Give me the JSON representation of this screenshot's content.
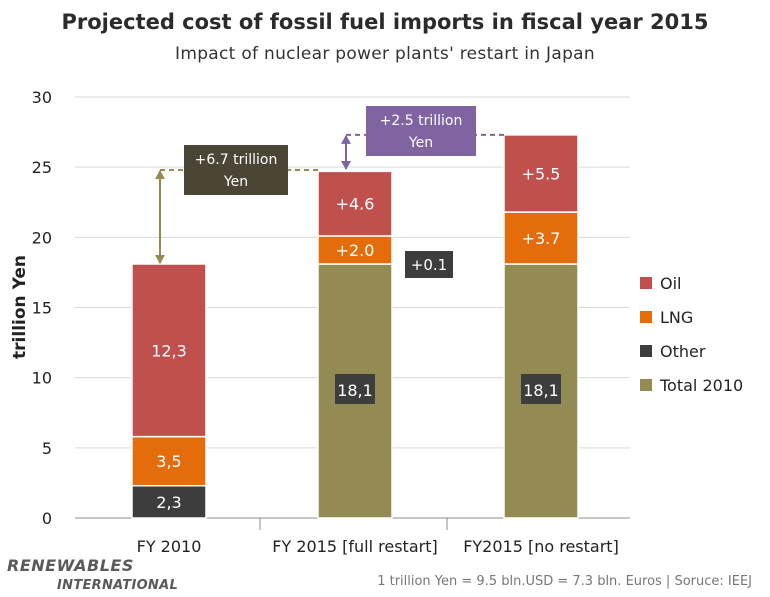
{
  "title": "Projected cost of fossil fuel imports in fiscal year 2015",
  "subtitle": "Impact of nuclear power plants' restart in Japan",
  "brand_line1": "RENEWABLES",
  "brand_line2": "INTERNATIONAL",
  "footnote": "1 trillion Yen = 9.5 bln.USD = 7.3 bln. Euros | Soruce: IEEJ",
  "chart_data": {
    "type": "bar",
    "stacked": true,
    "ylabel": "trillion Yen",
    "ylim": [
      0,
      30
    ],
    "yticks": [
      0,
      5,
      10,
      15,
      20,
      25,
      30
    ],
    "grid": true,
    "legend_position": "right",
    "categories": [
      "FY 2010",
      "FY 2015 [full restart]",
      "FY2015 [no restart]"
    ],
    "series": [
      {
        "name": "Other",
        "color": "#3d3d3d",
        "values": [
          2.3,
          0,
          0
        ],
        "labels": [
          "2,3",
          "",
          ""
        ]
      },
      {
        "name": "Total 2010",
        "color": "#948a54",
        "values": [
          0,
          18.1,
          18.1
        ],
        "labels": [
          "",
          "18,1",
          "18,1"
        ]
      },
      {
        "name": "LNG",
        "color": "#e46c0a",
        "values": [
          3.5,
          2.0,
          3.7
        ],
        "labels": [
          "3,5",
          "+2.0",
          "+3.7"
        ]
      },
      {
        "name": "Oil",
        "color": "#c0504d",
        "values": [
          12.3,
          4.6,
          5.5
        ],
        "labels": [
          "12,3",
          "+4.6",
          "+5.5"
        ]
      }
    ],
    "legend": [
      {
        "name": "Oil",
        "color": "#c0504d"
      },
      {
        "name": "LNG",
        "color": "#e46c0a"
      },
      {
        "name": "Other",
        "color": "#3d3d3d"
      },
      {
        "name": "Total 2010",
        "color": "#948a54"
      }
    ],
    "annotations": [
      {
        "text": "+0.1",
        "color": "#3d3d3d",
        "value": 0.1
      },
      {
        "lines": [
          "+6.7 trillion",
          "Yen"
        ],
        "color": "#4a4535",
        "from": 18.1,
        "to": 24.8
      },
      {
        "lines": [
          "+2.5 trillion",
          "Yen"
        ],
        "color": "#8064a2",
        "from": 24.8,
        "to": 27.3
      }
    ]
  }
}
